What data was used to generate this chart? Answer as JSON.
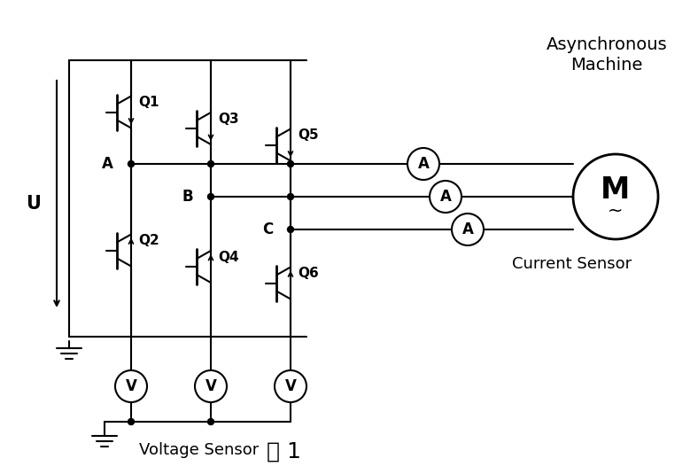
{
  "title": "图 1",
  "bg_color": "#ffffff",
  "text_color": "#000000",
  "line_color": "#000000",
  "label_async": [
    "Asynchronous",
    "Machine"
  ],
  "label_current_sensor": "Current Sensor",
  "label_voltage_sensor": "Voltage Sensor",
  "label_U": "U",
  "transistors_top": [
    "Q1",
    "Q3",
    "Q5"
  ],
  "transistors_bottom": [
    "Q2",
    "Q4",
    "Q6"
  ],
  "nodes": [
    "A",
    "B",
    "C"
  ],
  "lw": 1.5
}
